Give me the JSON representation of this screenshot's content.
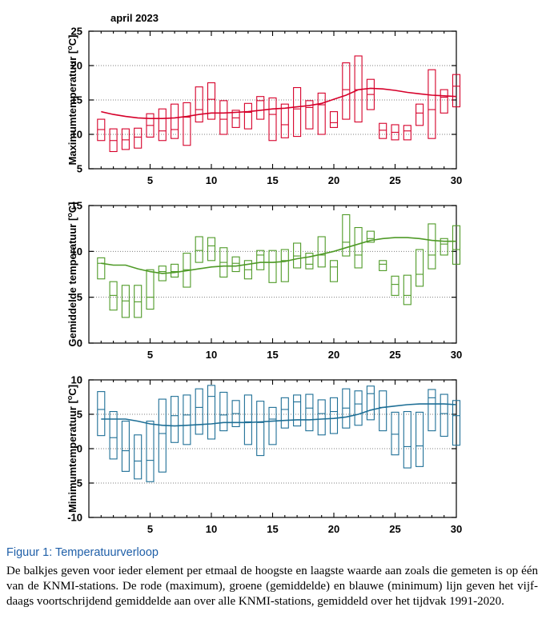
{
  "caption": {
    "title": "Figuur 1: Temperatuurverloop",
    "text": "De balkjes geven voor ieder element per etmaal de hoogste en laagste waarde aan zoals die gemeten is op één van de KNMI-stations. De rode (maximum), groene (gemiddelde) en blauwe (minimum) lijn geven het vijf-daags voortschrijdend gemiddelde aan over alle KNMI-stations, gemiddeld over het tijdvak 1991-2020."
  },
  "chart_data": [
    {
      "type": "box",
      "title": "april 2023",
      "ylabel": "Maximumtemperatuur [°C]",
      "color": "#d6002a",
      "xlim": [
        0,
        30
      ],
      "ylim": [
        5,
        25
      ],
      "xticks": [
        5,
        10,
        15,
        20,
        25,
        30
      ],
      "yticks": [
        5,
        10,
        15,
        20,
        25
      ],
      "grid": true,
      "x": [
        1,
        2,
        3,
        4,
        5,
        6,
        7,
        8,
        9,
        10,
        11,
        12,
        13,
        14,
        15,
        16,
        17,
        18,
        19,
        20,
        21,
        22,
        23,
        24,
        25,
        26,
        27,
        28,
        29,
        30
      ],
      "high": [
        12.2,
        10.8,
        10.8,
        10.9,
        13.0,
        13.7,
        14.4,
        14.6,
        16.9,
        17.5,
        14.9,
        13.5,
        14.5,
        15.5,
        15.3,
        14.4,
        16.8,
        14.9,
        16.0,
        13.3,
        20.4,
        21.4,
        18.0,
        11.6,
        11.4,
        11.3,
        14.4,
        19.4,
        16.5,
        18.7
      ],
      "low": [
        9.1,
        7.5,
        7.8,
        8.0,
        9.6,
        9.1,
        9.4,
        8.4,
        11.8,
        12.2,
        10.0,
        11.0,
        10.8,
        12.2,
        9.1,
        9.5,
        9.7,
        10.8,
        10.0,
        11.0,
        12.2,
        11.8,
        13.6,
        9.4,
        9.2,
        9.2,
        11.3,
        9.4,
        13.1,
        14.0
      ],
      "mid": [
        10.7,
        9.1,
        9.2,
        9.6,
        11.3,
        10.5,
        10.7,
        12.5,
        13.6,
        15.1,
        12.2,
        12.4,
        13.2,
        14.9,
        12.9,
        11.4,
        13.7,
        13.9,
        14.3,
        11.7,
        16.5,
        16.5,
        15.8,
        10.6,
        10.3,
        10.5,
        13.1,
        13.6,
        15.4,
        17.0
      ],
      "mean": [
        13.3,
        12.9,
        12.6,
        12.4,
        12.3,
        12.3,
        12.4,
        12.6,
        12.9,
        13.1,
        13.1,
        13.2,
        13.3,
        13.5,
        13.7,
        13.8,
        14.0,
        14.2,
        14.5,
        15.1,
        15.7,
        16.5,
        16.7,
        16.6,
        16.4,
        16.1,
        15.9,
        15.7,
        15.6,
        15.5
      ]
    },
    {
      "type": "box",
      "ylabel": "Gemiddelde temperatuur [°C]",
      "color": "#4f9a27",
      "xlim": [
        0,
        30
      ],
      "ylim": [
        0,
        15
      ],
      "xticks": [
        5,
        10,
        15,
        20,
        25,
        30
      ],
      "yticks": [
        0,
        5,
        10,
        15
      ],
      "grid": true,
      "x": [
        1,
        2,
        3,
        4,
        5,
        6,
        7,
        8,
        9,
        10,
        11,
        12,
        13,
        14,
        15,
        16,
        17,
        18,
        19,
        20,
        21,
        22,
        23,
        24,
        25,
        26,
        27,
        28,
        29,
        30
      ],
      "high": [
        9.3,
        6.7,
        6.3,
        6.3,
        8.0,
        8.4,
        8.6,
        9.8,
        11.6,
        11.5,
        10.4,
        9.4,
        9.0,
        10.1,
        10.1,
        10.2,
        10.9,
        9.8,
        11.6,
        9.0,
        14.0,
        12.6,
        12.2,
        9.0,
        7.3,
        7.4,
        10.2,
        13.0,
        11.4,
        12.8
      ],
      "low": [
        7.0,
        3.6,
        2.8,
        2.8,
        3.7,
        6.8,
        7.2,
        6.1,
        8.8,
        9.0,
        7.2,
        7.8,
        7.0,
        8.0,
        6.6,
        6.7,
        8.2,
        8.1,
        8.3,
        6.7,
        9.5,
        8.2,
        11.0,
        7.9,
        5.2,
        4.2,
        6.2,
        8.1,
        9.6,
        8.6
      ],
      "mid": [
        8.7,
        5.2,
        4.6,
        4.5,
        5.0,
        7.8,
        7.8,
        8.0,
        10.1,
        10.6,
        8.8,
        8.7,
        8.0,
        9.6,
        8.8,
        9.0,
        9.5,
        8.6,
        9.6,
        8.3,
        11.0,
        9.6,
        11.4,
        8.6,
        6.4,
        5.2,
        7.5,
        9.6,
        10.8,
        10.2
      ],
      "mean": [
        8.7,
        8.5,
        8.5,
        8.1,
        7.8,
        7.6,
        7.7,
        7.9,
        8.1,
        8.3,
        8.4,
        8.4,
        8.6,
        8.8,
        8.8,
        8.9,
        9.2,
        9.4,
        9.7,
        10.0,
        10.4,
        10.8,
        11.2,
        11.4,
        11.5,
        11.5,
        11.4,
        11.2,
        11.1,
        11.1
      ]
    },
    {
      "type": "box",
      "ylabel": "Minimumtemperatuur [°C]",
      "color": "#1e6f96",
      "xlim": [
        0,
        30
      ],
      "ylim": [
        -10,
        10
      ],
      "xticks": [
        5,
        10,
        15,
        20,
        25,
        30
      ],
      "yticks": [
        -10,
        -5,
        0,
        5,
        10
      ],
      "grid": true,
      "x": [
        1,
        2,
        3,
        4,
        5,
        6,
        7,
        8,
        9,
        10,
        11,
        12,
        13,
        14,
        15,
        16,
        17,
        18,
        19,
        20,
        21,
        22,
        23,
        24,
        25,
        26,
        27,
        28,
        29,
        30
      ],
      "high": [
        8.3,
        5.4,
        4.0,
        2.0,
        4.0,
        7.2,
        7.6,
        7.8,
        8.7,
        9.2,
        8.2,
        7.0,
        7.8,
        6.9,
        6.0,
        7.4,
        7.8,
        7.9,
        7.1,
        7.4,
        8.7,
        8.4,
        9.1,
        8.4,
        5.3,
        5.4,
        5.3,
        8.6,
        7.9,
        7.0
      ],
      "low": [
        1.9,
        -1.5,
        -3.3,
        -4.4,
        -4.8,
        -3.4,
        0.9,
        0.6,
        2.1,
        1.4,
        2.6,
        3.2,
        0.6,
        -1.0,
        0.6,
        3.0,
        3.3,
        2.6,
        2.0,
        2.2,
        3.0,
        3.4,
        4.2,
        2.6,
        -0.9,
        -2.8,
        -2.6,
        2.6,
        1.8,
        0.5
      ],
      "mid": [
        5.7,
        1.6,
        -0.3,
        -1.8,
        -1.7,
        2.2,
        4.8,
        4.9,
        6.0,
        7.6,
        4.9,
        5.1,
        3.9,
        3.8,
        4.3,
        5.7,
        6.8,
        5.9,
        5.1,
        5.4,
        5.9,
        6.5,
        8.0,
        6.0,
        2.1,
        0.3,
        0.4,
        7.4,
        5.1,
        4.8
      ],
      "mean": [
        4.3,
        4.3,
        4.3,
        4.0,
        3.6,
        3.4,
        3.3,
        3.4,
        3.5,
        3.6,
        3.8,
        3.8,
        3.8,
        3.9,
        4.0,
        4.1,
        4.2,
        4.2,
        4.3,
        4.4,
        4.6,
        5.0,
        5.6,
        6.0,
        6.2,
        6.4,
        6.5,
        6.5,
        6.5,
        6.4
      ]
    }
  ]
}
